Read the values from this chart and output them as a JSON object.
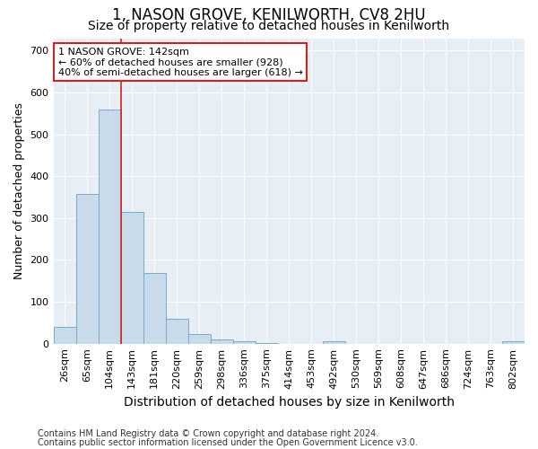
{
  "title": "1, NASON GROVE, KENILWORTH, CV8 2HU",
  "subtitle": "Size of property relative to detached houses in Kenilworth",
  "xlabel": "Distribution of detached houses by size in Kenilworth",
  "ylabel": "Number of detached properties",
  "bar_color": "#c9daea",
  "bar_edge_color": "#7baac8",
  "categories": [
    "26sqm",
    "65sqm",
    "104sqm",
    "143sqm",
    "181sqm",
    "220sqm",
    "259sqm",
    "298sqm",
    "336sqm",
    "375sqm",
    "414sqm",
    "453sqm",
    "492sqm",
    "530sqm",
    "569sqm",
    "608sqm",
    "647sqm",
    "686sqm",
    "724sqm",
    "763sqm",
    "802sqm"
  ],
  "values": [
    40,
    358,
    560,
    315,
    168,
    60,
    22,
    11,
    6,
    1,
    0,
    0,
    5,
    0,
    0,
    0,
    0,
    0,
    0,
    0,
    5
  ],
  "ylim": [
    0,
    730
  ],
  "yticks": [
    0,
    100,
    200,
    300,
    400,
    500,
    600,
    700
  ],
  "vline_x_index": 3,
  "vline_color": "#cc2222",
  "annotation_line1": "1 NASON GROVE: 142sqm",
  "annotation_line2": "← 60% of detached houses are smaller (928)",
  "annotation_line3": "40% of semi-detached houses are larger (618) →",
  "annotation_box_color": "#ffffff",
  "annotation_box_edge": "#cc2222",
  "footer1": "Contains HM Land Registry data © Crown copyright and database right 2024.",
  "footer2": "Contains public sector information licensed under the Open Government Licence v3.0.",
  "bg_color": "#ffffff",
  "plot_bg_color": "#e8eef5",
  "grid_color": "#ffffff",
  "title_fontsize": 12,
  "subtitle_fontsize": 10,
  "xlabel_fontsize": 10,
  "ylabel_fontsize": 9,
  "tick_fontsize": 8,
  "annotation_fontsize": 8,
  "footer_fontsize": 7
}
